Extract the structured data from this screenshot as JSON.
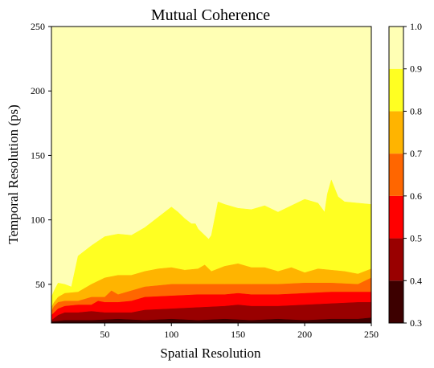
{
  "chart_data": {
    "type": "contour",
    "title": "Mutual Coherence",
    "xlabel": "Spatial Resolution",
    "ylabel": "Temporal Resolution (ps)",
    "xlim": [
      10,
      250
    ],
    "ylim": [
      20,
      250
    ],
    "xticks": [
      50,
      100,
      150,
      200,
      250
    ],
    "yticks": [
      50,
      100,
      150,
      200,
      250
    ],
    "colorbar": {
      "ticks": [
        0.3,
        0.4,
        0.5,
        0.6,
        0.7,
        0.8,
        0.9,
        1.0
      ],
      "tick_labels": [
        "0.3",
        "0.4",
        "0.5",
        "0.6",
        "0.7",
        "0.8",
        "0.9",
        "1.0"
      ],
      "colors": [
        "#3d0000",
        "#990000",
        "#ff0000",
        "#ff6600",
        "#ffb400",
        "#ffff22",
        "#ffffb4"
      ]
    },
    "contour_levels": [
      {
        "level": 0.3,
        "x": [
          10,
          250
        ],
        "y": [
          20,
          20
        ]
      },
      {
        "level": 0.4,
        "x": [
          10,
          20,
          40,
          60,
          80,
          100,
          120,
          140,
          160,
          180,
          200,
          220,
          240,
          250
        ],
        "y": [
          21,
          22,
          22,
          23,
          22,
          23,
          22,
          23,
          22,
          23,
          22,
          23,
          23,
          24
        ]
      },
      {
        "level": 0.5,
        "x": [
          10,
          15,
          20,
          30,
          40,
          50,
          60,
          70,
          80,
          100,
          120,
          140,
          150,
          160,
          180,
          200,
          220,
          240,
          250
        ],
        "y": [
          22,
          26,
          28,
          28,
          29,
          28,
          28,
          28,
          30,
          31,
          32,
          33,
          34,
          33,
          33,
          34,
          35,
          36,
          36
        ]
      },
      {
        "level": 0.6,
        "x": [
          10,
          15,
          20,
          30,
          40,
          45,
          50,
          60,
          70,
          80,
          100,
          120,
          140,
          150,
          160,
          180,
          200,
          220,
          240,
          250
        ],
        "y": [
          26,
          31,
          33,
          34,
          34,
          37,
          36,
          36,
          37,
          40,
          41,
          42,
          42,
          43,
          42,
          42,
          43,
          44,
          44,
          44
        ]
      },
      {
        "level": 0.7,
        "x": [
          10,
          12,
          15,
          20,
          30,
          40,
          50,
          55,
          60,
          70,
          80,
          100,
          120,
          140,
          160,
          180,
          200,
          220,
          240,
          250
        ],
        "y": [
          29,
          33,
          36,
          37,
          37,
          40,
          40,
          45,
          42,
          45,
          48,
          50,
          50,
          50,
          50,
          50,
          51,
          51,
          50,
          55
        ]
      },
      {
        "level": 0.8,
        "x": [
          10,
          12,
          15,
          20,
          30,
          40,
          50,
          60,
          70,
          80,
          90,
          100,
          110,
          120,
          125,
          130,
          140,
          150,
          160,
          170,
          180,
          190,
          200,
          210,
          220,
          230,
          240,
          250
        ],
        "y": [
          32,
          36,
          40,
          43,
          44,
          50,
          55,
          57,
          57,
          60,
          62,
          63,
          61,
          62,
          65,
          60,
          64,
          66,
          63,
          63,
          60,
          63,
          59,
          62,
          61,
          60,
          58,
          62
        ]
      },
      {
        "level": 0.9,
        "x": [
          10,
          12,
          15,
          20,
          25,
          30,
          40,
          50,
          60,
          70,
          80,
          90,
          100,
          105,
          110,
          115,
          118,
          120,
          128,
          130,
          135,
          140,
          150,
          160,
          170,
          180,
          190,
          200,
          210,
          215,
          217,
          220,
          225,
          230,
          240,
          250
        ],
        "y": [
          40,
          45,
          51,
          50,
          48,
          72,
          80,
          87,
          89,
          88,
          94,
          102,
          110,
          106,
          101,
          97,
          97,
          93,
          85,
          88,
          114,
          112,
          109,
          108,
          111,
          106,
          111,
          116,
          113,
          106,
          120,
          131,
          118,
          114,
          113,
          112
        ]
      }
    ]
  }
}
